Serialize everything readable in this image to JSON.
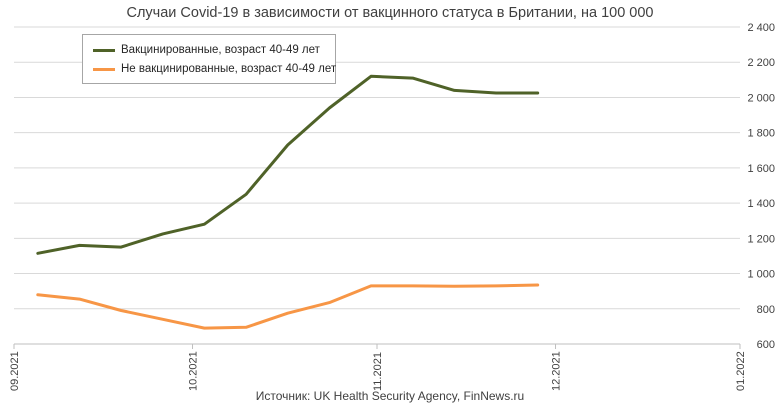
{
  "chart_data": {
    "type": "line",
    "title": "Случаи Covid-19 в зависимости от вакцинного статуса в Британии, на 100 000",
    "source": "Источник: UK Health Security Agency, FinNews.ru",
    "ylim": [
      600,
      2400
    ],
    "y_ticks": [
      "600",
      "800",
      "1 000",
      "1 200",
      "1 400",
      "1 600",
      "1 800",
      "2 000",
      "2 200",
      "2 400"
    ],
    "y_axis_side": "right",
    "x_ticks": [
      "09.2021",
      "10.2021",
      "11.2021",
      "12.2021",
      "01.2022"
    ],
    "x": [
      "2021-09-05",
      "2021-09-12",
      "2021-09-19",
      "2021-09-26",
      "2021-10-03",
      "2021-10-10",
      "2021-10-17",
      "2021-10-24",
      "2021-10-31",
      "2021-11-07",
      "2021-11-14",
      "2021-11-21",
      "2021-11-28"
    ],
    "grid": "horizontal",
    "legend_position": "top-left",
    "series": [
      {
        "name": "Вакцинированные, возраст 40-49 лет",
        "color": "#4f6228",
        "values": [
          1115,
          1160,
          1150,
          1225,
          1280,
          1450,
          1730,
          1940,
          2120,
          2110,
          2040,
          2025,
          2025
        ]
      },
      {
        "name": "Не вакцинированные, возраст 40-49 лет",
        "color": "#f79646",
        "values": [
          880,
          855,
          790,
          740,
          690,
          695,
          775,
          835,
          930,
          930,
          928,
          930,
          935
        ]
      }
    ]
  }
}
